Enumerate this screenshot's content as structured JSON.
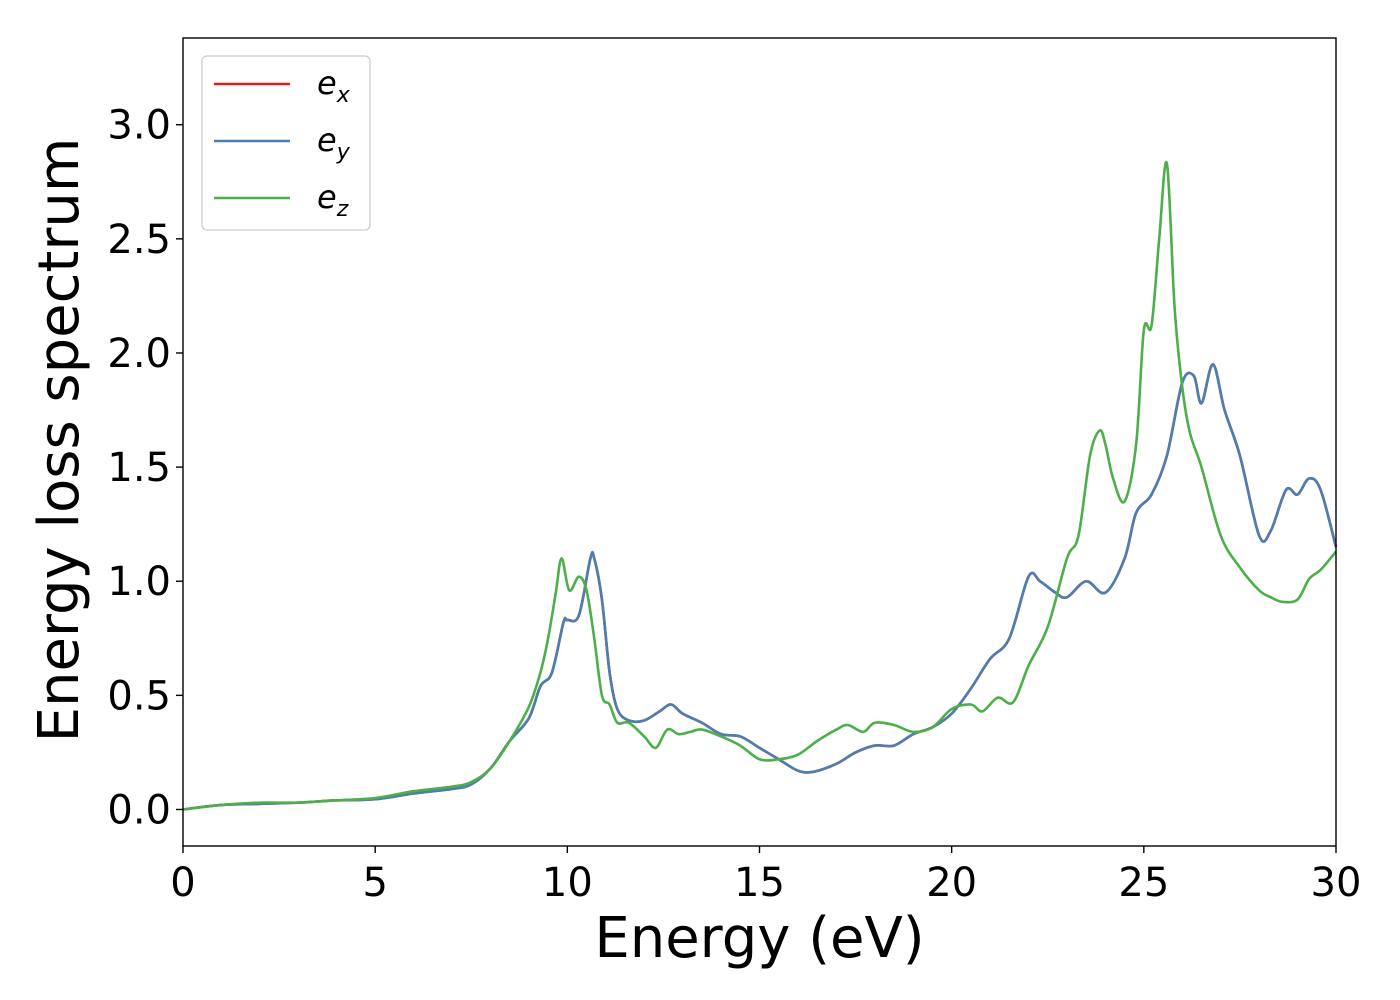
{
  "chart_data": {
    "type": "line",
    "xlabel": "Energy (eV)",
    "ylabel": "Energy loss spectrum",
    "xlim": [
      0,
      30
    ],
    "ylim": [
      -0.16,
      3.38
    ],
    "x_ticks": [
      "0",
      "5",
      "10",
      "15",
      "20",
      "25",
      "30"
    ],
    "y_ticks": [
      "0.0",
      "0.5",
      "1.0",
      "1.5",
      "2.0",
      "2.5",
      "3.0"
    ],
    "grid": false,
    "legend_position": "top-left",
    "series": [
      {
        "name": "e_x",
        "label_base": "e",
        "label_sub": "x",
        "color": "#e41a1c",
        "x": [
          0,
          1,
          2,
          3,
          4,
          5,
          6,
          7,
          7.5,
          8,
          8.5,
          9,
          9.3,
          9.6,
          9.9,
          10,
          10.3,
          10.6,
          10.7,
          10.9,
          11.1,
          11.3,
          11.6,
          12,
          12.4,
          12.7,
          13,
          13.5,
          14,
          14.5,
          15,
          15.5,
          16,
          16.4,
          17,
          17.5,
          18,
          18.5,
          19,
          19.5,
          20,
          20.5,
          21,
          21.5,
          22,
          22.3,
          22.7,
          23,
          23.5,
          24,
          24.5,
          24.8,
          25.2,
          25.6,
          26,
          26.3,
          26.5,
          26.8,
          27.1,
          27.5,
          28,
          28.3,
          28.7,
          29,
          29.3,
          29.6,
          30
        ],
        "values": [
          0,
          0.02,
          0.025,
          0.03,
          0.04,
          0.045,
          0.07,
          0.09,
          0.11,
          0.18,
          0.3,
          0.4,
          0.54,
          0.6,
          0.82,
          0.83,
          0.85,
          1.1,
          1.1,
          0.92,
          0.6,
          0.44,
          0.39,
          0.39,
          0.43,
          0.46,
          0.42,
          0.38,
          0.33,
          0.32,
          0.27,
          0.22,
          0.17,
          0.165,
          0.2,
          0.25,
          0.28,
          0.28,
          0.33,
          0.36,
          0.42,
          0.53,
          0.66,
          0.75,
          1.02,
          1.0,
          0.95,
          0.93,
          1.0,
          0.95,
          1.1,
          1.3,
          1.38,
          1.55,
          1.87,
          1.9,
          1.78,
          1.95,
          1.75,
          1.55,
          1.2,
          1.22,
          1.4,
          1.38,
          1.45,
          1.4,
          1.15
        ]
      },
      {
        "name": "e_y",
        "label_base": "e",
        "label_sub": "y",
        "color": "#4a7fb0",
        "x": [
          0,
          1,
          2,
          3,
          4,
          5,
          6,
          7,
          7.5,
          8,
          8.5,
          9,
          9.3,
          9.6,
          9.9,
          10,
          10.3,
          10.6,
          10.7,
          10.9,
          11.1,
          11.3,
          11.6,
          12,
          12.4,
          12.7,
          13,
          13.5,
          14,
          14.5,
          15,
          15.5,
          16,
          16.4,
          17,
          17.5,
          18,
          18.5,
          19,
          19.5,
          20,
          20.5,
          21,
          21.5,
          22,
          22.3,
          22.7,
          23,
          23.5,
          24,
          24.5,
          24.8,
          25.2,
          25.6,
          26,
          26.3,
          26.5,
          26.8,
          27.1,
          27.5,
          28,
          28.3,
          28.7,
          29,
          29.3,
          29.6,
          30
        ],
        "values": [
          0,
          0.02,
          0.025,
          0.03,
          0.04,
          0.045,
          0.07,
          0.09,
          0.11,
          0.18,
          0.3,
          0.4,
          0.54,
          0.6,
          0.82,
          0.83,
          0.85,
          1.1,
          1.1,
          0.92,
          0.6,
          0.44,
          0.39,
          0.39,
          0.43,
          0.46,
          0.42,
          0.38,
          0.33,
          0.32,
          0.27,
          0.22,
          0.17,
          0.165,
          0.2,
          0.25,
          0.28,
          0.28,
          0.33,
          0.36,
          0.42,
          0.53,
          0.66,
          0.75,
          1.02,
          1.0,
          0.95,
          0.93,
          1.0,
          0.95,
          1.1,
          1.3,
          1.38,
          1.55,
          1.87,
          1.9,
          1.78,
          1.95,
          1.75,
          1.55,
          1.2,
          1.22,
          1.4,
          1.38,
          1.45,
          1.4,
          1.15
        ]
      },
      {
        "name": "e_z",
        "label_base": "e",
        "label_sub": "z",
        "color": "#4daf4a",
        "x": [
          0,
          1,
          2,
          3,
          4,
          5,
          6,
          7,
          7.5,
          8,
          8.5,
          9,
          9.3,
          9.5,
          9.7,
          9.85,
          10.05,
          10.3,
          10.5,
          10.7,
          10.9,
          11.1,
          11.3,
          11.6,
          12,
          12.3,
          12.6,
          12.9,
          13.2,
          13.5,
          14,
          14.5,
          15,
          15.5,
          16,
          16.5,
          17,
          17.3,
          17.7,
          18,
          18.5,
          19,
          19.5,
          20,
          20.5,
          20.8,
          21.2,
          21.6,
          22,
          22.5,
          23,
          23.3,
          23.6,
          23.85,
          24,
          24.2,
          24.5,
          24.8,
          25,
          25.2,
          25.4,
          25.6,
          25.8,
          26,
          26.2,
          26.5,
          27,
          27.5,
          28,
          28.3,
          28.6,
          29,
          29.3,
          29.6,
          30
        ],
        "values": [
          0,
          0.02,
          0.03,
          0.03,
          0.04,
          0.05,
          0.08,
          0.1,
          0.12,
          0.18,
          0.3,
          0.45,
          0.6,
          0.75,
          0.95,
          1.1,
          0.96,
          1.02,
          0.96,
          0.75,
          0.5,
          0.46,
          0.38,
          0.38,
          0.32,
          0.27,
          0.35,
          0.33,
          0.34,
          0.35,
          0.32,
          0.28,
          0.22,
          0.22,
          0.24,
          0.3,
          0.35,
          0.37,
          0.34,
          0.38,
          0.37,
          0.34,
          0.36,
          0.44,
          0.46,
          0.43,
          0.49,
          0.47,
          0.63,
          0.8,
          1.1,
          1.2,
          1.55,
          1.66,
          1.6,
          1.45,
          1.35,
          1.6,
          2.1,
          2.12,
          2.5,
          2.83,
          2.2,
          1.85,
          1.65,
          1.5,
          1.2,
          1.06,
          0.96,
          0.93,
          0.91,
          0.92,
          1.01,
          1.05,
          1.13
        ]
      }
    ]
  }
}
